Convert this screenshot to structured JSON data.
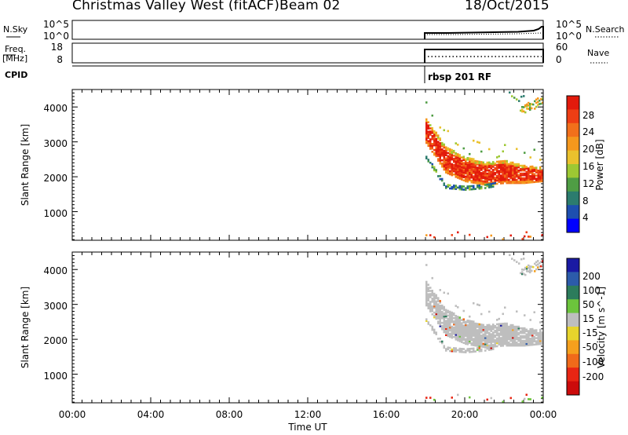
{
  "header": {
    "station": "Christmas Valley West (fitACF)",
    "beam": "Beam 02",
    "date": "18/Oct/2015"
  },
  "noise_panel": {
    "left_label": "N.Sky",
    "left_ticks": [
      "10^5",
      "10^0"
    ],
    "right_ticks": [
      "10^5",
      "10^0"
    ],
    "right_label": "N.Search"
  },
  "freq_panel": {
    "left_label_1": "Freq.",
    "left_label_2": "[MHz]",
    "left_ticks": [
      "18",
      "8"
    ],
    "right_ticks": [
      "60",
      "0"
    ],
    "right_label": "Nave"
  },
  "cpid": {
    "label": "CPID",
    "program": "rbsp 201 RF"
  },
  "colors": {
    "power_scale": [
      "#0000ff",
      "#1d4faf",
      "#2c7c6e",
      "#4f9d44",
      "#9dc833",
      "#eac12d",
      "#f5981d",
      "#f2701b",
      "#ee3e14",
      "#e21a0c"
    ],
    "velocity_scale": [
      "#1a1aa3",
      "#2c5baa",
      "#2c7c5c",
      "#6cc43c",
      "#bebebe",
      "#e7d42c",
      "#f5a01d",
      "#f06a1a",
      "#e82513",
      "#cc0b0b"
    ],
    "ground_scatter": "#bebebe"
  },
  "chart_data": [
    {
      "type": "heatmap",
      "name_printed": "",
      "xlabel": "",
      "ylabel": "Slant Range [km]",
      "xlim": [
        "00:00",
        "24:00"
      ],
      "ylim": [
        180,
        4500
      ],
      "ytick_labels": [
        "1000",
        "2000",
        "3000",
        "4000"
      ],
      "colorbar": {
        "label": "Power [dB]",
        "ticks": [
          "4",
          "8",
          "12",
          "16",
          "20",
          "24",
          "28"
        ],
        "range": [
          0,
          30
        ]
      },
      "data_start": "18:00",
      "echo_bands": [
        {
          "hours": [
            18.0,
            19.0,
            20.0,
            21.0,
            22.0,
            23.0,
            23.9
          ],
          "range_upper_km": [
            3700,
            2900,
            2600,
            2450,
            2500,
            2350,
            2300
          ],
          "range_lower_km": [
            3000,
            2150,
            1900,
            1800,
            1850,
            1850,
            1900
          ],
          "power_db": 27
        },
        {
          "hours": [
            18.0,
            19.0,
            20.0,
            21.0,
            21.5
          ],
          "range_km": [
            2600,
            1750,
            1700,
            1750,
            1800
          ],
          "power_db": 12
        }
      ]
    },
    {
      "type": "heatmap",
      "name_printed": "",
      "xlabel": "Time UT",
      "ylabel": "Slant Range [km]",
      "xlim": [
        "00:00",
        "24:00"
      ],
      "xtick_labels": [
        "00:00",
        "04:00",
        "08:00",
        "12:00",
        "16:00",
        "20:00",
        "00:00"
      ],
      "ylim": [
        180,
        4500
      ],
      "ytick_labels": [
        "1000",
        "2000",
        "3000",
        "4000"
      ],
      "colorbar": {
        "label": "Velocity [m s^-1]",
        "ticks": [
          "200",
          "100",
          "50",
          "15",
          "-15",
          "-50",
          "-100",
          "-200"
        ]
      },
      "data_start": "18:00",
      "dominant": "ground scatter (grey, |v| < 15 m/s)"
    }
  ]
}
